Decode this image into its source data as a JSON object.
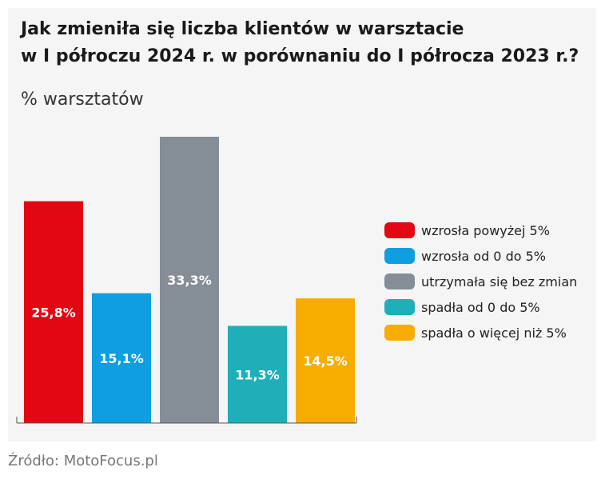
{
  "title_line1": "Jak zmieniła się liczba klientów w warsztacie",
  "title_line2": "w I półroczu 2024 r. w porównaniu do I półrocza 2023 r.?",
  "subtitle": "% warsztatów",
  "source": "Źródło: MotoFocus.pl",
  "chart_data": {
    "type": "bar",
    "categories": [
      "wzrosła powyżej 5%",
      "wzrosła od 0 do 5%",
      "utrzymała się bez zmian",
      "spadła od 0 do 5%",
      "spadła o więcej niż 5%"
    ],
    "values": [
      25.8,
      15.1,
      33.3,
      11.3,
      14.5
    ],
    "value_labels": [
      "25,8%",
      "15,1%",
      "33,3%",
      "11,3%",
      "14,5%"
    ],
    "colors": [
      "#e30613",
      "#0f9ee0",
      "#858d96",
      "#1fafb8",
      "#f6ad00"
    ],
    "ylim": [
      0,
      33.3
    ],
    "legend_position": "right",
    "grid": false
  }
}
